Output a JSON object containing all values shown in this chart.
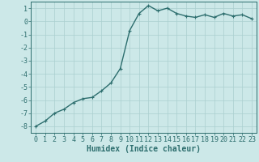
{
  "x": [
    0,
    1,
    2,
    3,
    4,
    5,
    6,
    7,
    8,
    9,
    10,
    11,
    12,
    13,
    14,
    15,
    16,
    17,
    18,
    19,
    20,
    21,
    22,
    23
  ],
  "y": [
    -8.0,
    -7.6,
    -7.0,
    -6.7,
    -6.2,
    -5.9,
    -5.8,
    -5.3,
    -4.7,
    -3.6,
    -0.7,
    0.6,
    1.2,
    0.8,
    1.0,
    0.6,
    0.4,
    0.3,
    0.5,
    0.3,
    0.6,
    0.4,
    0.5,
    0.2
  ],
  "line_color": "#2d6e6e",
  "marker": "+",
  "bg_color": "#cce8e8",
  "grid_color": "#aacfcf",
  "ylabel_values": [
    1,
    0,
    -1,
    -2,
    -3,
    -4,
    -5,
    -6,
    -7,
    -8
  ],
  "xlabel": "Humidex (Indice chaleur)",
  "xlim": [
    -0.5,
    23.5
  ],
  "ylim": [
    -8.5,
    1.5
  ],
  "xlabel_fontsize": 7,
  "tick_fontsize": 6,
  "line_width": 1.0,
  "marker_size": 3
}
